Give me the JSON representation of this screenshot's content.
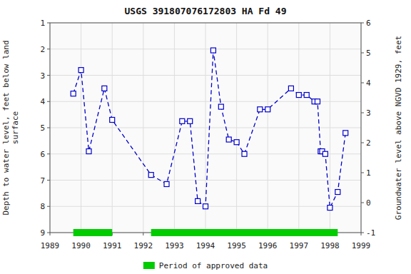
{
  "chart_data": {
    "type": "line",
    "title": "USGS 391807076172803 HA Fd  49",
    "ylabel": "Depth to water level, feet below land\nsurface",
    "y2label": "Groundwater level above NGVD 1929, feet",
    "x": [
      1989.75,
      1990.0,
      1990.25,
      1990.75,
      1991.0,
      1992.25,
      1992.75,
      1993.25,
      1993.5,
      1993.75,
      1994.0,
      1994.25,
      1994.5,
      1994.75,
      1995.0,
      1995.25,
      1995.75,
      1996.0,
      1996.75,
      1997.0,
      1997.25,
      1997.5,
      1997.6,
      1997.7,
      1997.75,
      1997.85,
      1998.0,
      1998.25,
      1998.5
    ],
    "series": [
      {
        "color": "#0000CC",
        "marker": "square",
        "line_style": "dashed",
        "values": [
          3.7,
          2.8,
          5.9,
          3.5,
          4.7,
          6.8,
          7.15,
          4.75,
          4.75,
          7.8,
          8.0,
          2.05,
          4.2,
          5.45,
          5.55,
          6.0,
          4.3,
          4.3,
          3.5,
          3.75,
          3.75,
          4.0,
          4.0,
          5.9,
          5.9,
          6.0,
          8.05,
          7.45,
          5.2
        ]
      }
    ],
    "approved_periods": {
      "name": "Period of approved data",
      "color": "#00CC00",
      "x_ranges": [
        [
          1989.75,
          1991.0
        ],
        [
          1992.25,
          1998.25
        ]
      ]
    },
    "xlim": [
      1989,
      1999
    ],
    "xticks": [
      1989,
      1990,
      1991,
      1992,
      1993,
      1994,
      1995,
      1996,
      1997,
      1998,
      1999
    ],
    "ylim": [
      9.0,
      1.0
    ],
    "yticks": [
      1.0,
      2.0,
      3.0,
      4.0,
      5.0,
      6.0,
      7.0,
      8.0,
      9.0
    ],
    "y2lim": [
      -1.0,
      6.0
    ],
    "y2ticks": [
      -1.0,
      0.0,
      1.0,
      2.0,
      3.0,
      4.0,
      5.0,
      6.0
    ],
    "grid": true,
    "legend": "bottom"
  }
}
